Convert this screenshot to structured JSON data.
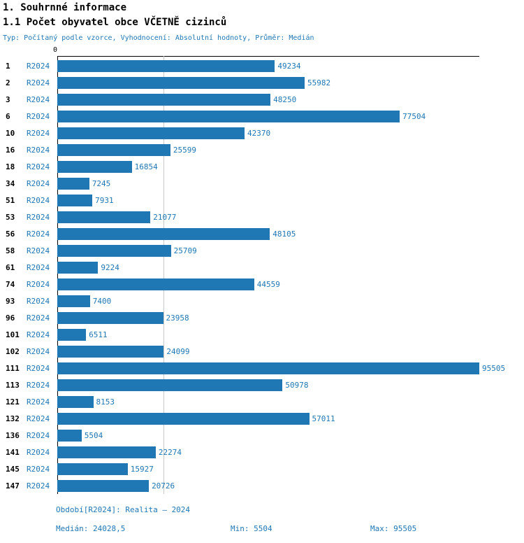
{
  "page": {
    "title": "1. Souhrnné informace",
    "subtitle": "1.1 Počet obyvatel obce VČETNĚ cizinců",
    "meta": "Typ: Počítaný podle vzorce, Vyhodnocení: Absolutní hodnoty, Průměr: Medián"
  },
  "theme": {
    "accent": "#1f77b4",
    "bar_color": "#1f77b4",
    "axis_color": "#000000",
    "grid_color": "#c8c8c8"
  },
  "chart_data": {
    "type": "bar",
    "orientation": "horizontal",
    "series_label": "R2024",
    "categories": [
      "1",
      "2",
      "3",
      "6",
      "10",
      "16",
      "18",
      "34",
      "51",
      "53",
      "56",
      "58",
      "61",
      "74",
      "93",
      "96",
      "101",
      "102",
      "111",
      "113",
      "121",
      "132",
      "136",
      "141",
      "145",
      "147"
    ],
    "values": [
      49234,
      55982,
      48250,
      77504,
      42370,
      25599,
      16854,
      7245,
      7931,
      21077,
      48105,
      25709,
      9224,
      44559,
      7400,
      23958,
      6511,
      24099,
      95505,
      50978,
      8153,
      57011,
      5504,
      22274,
      15927,
      20726
    ],
    "xlim": [
      0,
      95505
    ],
    "x_tick_labels": [
      "0"
    ],
    "gridline_value": 24028.5,
    "legend_position": "none",
    "grid": "single-vertical-line-at-median",
    "value_labels": "right-of-bar"
  },
  "footer": {
    "period": "Období[R2024]: Realita – 2024",
    "median": "Medián: 24028,5",
    "min": "Min: 5504",
    "max": "Max: 95505"
  }
}
